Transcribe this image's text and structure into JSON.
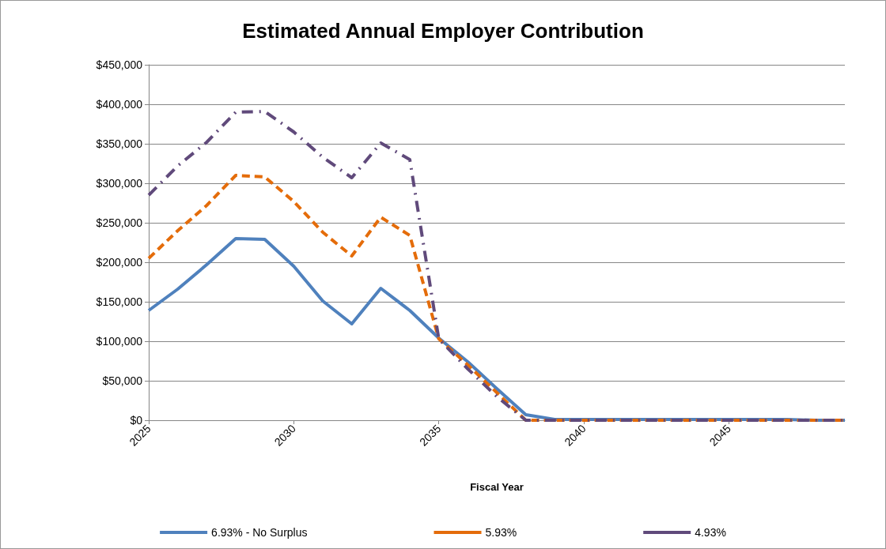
{
  "chart_data": {
    "type": "line",
    "title": "Estimated Annual Employer Contribution",
    "xlabel": "Fiscal Year",
    "x": [
      2025,
      2026,
      2027,
      2028,
      2029,
      2030,
      2031,
      2032,
      2033,
      2034,
      2035,
      2036,
      2037,
      2038,
      2039,
      2040,
      2041,
      2042,
      2043,
      2044,
      2045,
      2046,
      2047,
      2048,
      2049
    ],
    "series": [
      {
        "name": "6.93% - No Surplus",
        "color": "#4f81bd",
        "line_style": "solid",
        "values": [
          139000,
          166000,
          197000,
          230000,
          229000,
          195000,
          151000,
          122000,
          167000,
          139000,
          104000,
          74000,
          40000,
          7000,
          1000,
          1000,
          1000,
          1000,
          1000,
          1000,
          1000,
          1000,
          1000,
          0,
          0
        ]
      },
      {
        "name": "5.93%",
        "color": "#e46c0a",
        "line_style": "dashed",
        "values": [
          205000,
          240000,
          272000,
          310000,
          308000,
          277000,
          238000,
          208000,
          257000,
          234000,
          103000,
          70000,
          35000,
          0,
          0,
          0,
          0,
          0,
          0,
          0,
          0,
          0,
          0,
          0,
          0
        ]
      },
      {
        "name": "4.93%",
        "color": "#604a7b",
        "line_style": "dashdot",
        "values": [
          285000,
          322000,
          352000,
          390000,
          391000,
          365000,
          333000,
          307000,
          351000,
          330000,
          103000,
          65000,
          30000,
          0,
          0,
          0,
          0,
          0,
          0,
          0,
          0,
          0,
          0,
          0,
          0
        ]
      }
    ],
    "xlim": [
      2025,
      2049
    ],
    "xticks": [
      2025,
      2030,
      2035,
      2040,
      2045
    ],
    "ylim": [
      0,
      450000
    ],
    "yticks": [
      {
        "value": 0,
        "label": "$0"
      },
      {
        "value": 50000,
        "label": "$50,000"
      },
      {
        "value": 100000,
        "label": "$100,000"
      },
      {
        "value": 150000,
        "label": "$150,000"
      },
      {
        "value": 200000,
        "label": "$200,000"
      },
      {
        "value": 250000,
        "label": "$250,000"
      },
      {
        "value": 300000,
        "label": "$300,000"
      },
      {
        "value": 350000,
        "label": "$350,000"
      },
      {
        "value": 400000,
        "label": "$400,000"
      },
      {
        "value": 450000,
        "label": "$450,000"
      }
    ],
    "grid": "y",
    "legend": "bottom",
    "marker": "none"
  }
}
